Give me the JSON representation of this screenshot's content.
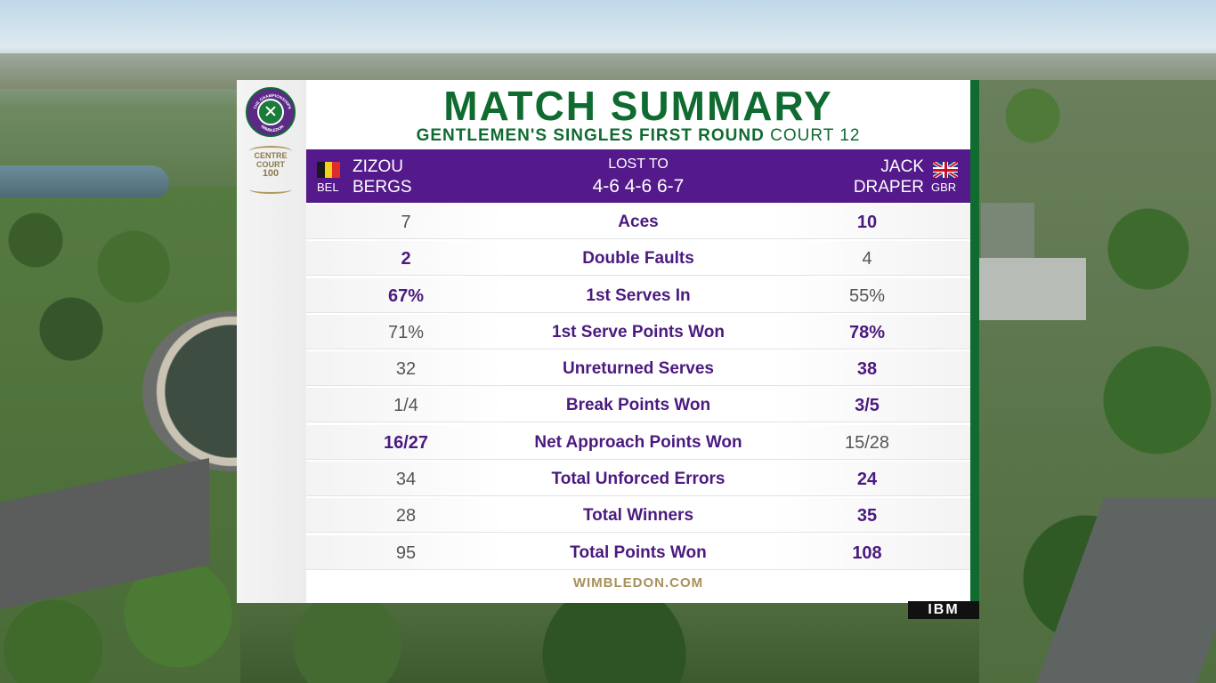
{
  "title": "MATCH SUMMARY",
  "subtitle": {
    "round": "GENTLEMEN'S SINGLES FIRST ROUND",
    "court": "COURT 12"
  },
  "logo": {
    "ring_text_top": "THE CHAMPIONSHIPS",
    "ring_text_bottom": "WIMBLEDON",
    "centre_court_line1": "CENTRE",
    "centre_court_line2": "COURT",
    "centre_court_number": "100"
  },
  "player1": {
    "first": "ZIZOU",
    "last": "BERGS",
    "country": "BEL",
    "flag_colors": [
      "#1a1a1a",
      "#f4d21c",
      "#e02b2b"
    ]
  },
  "player2": {
    "first": "JACK",
    "last": "DRAPER",
    "country": "GBR"
  },
  "result": {
    "status": "LOST TO",
    "score": "4-6 4-6 6-7"
  },
  "stats": [
    {
      "label": "Aces",
      "p1": "7",
      "p2": "10",
      "winner": "p2"
    },
    {
      "label": "Double Faults",
      "p1": "2",
      "p2": "4",
      "winner": "p1"
    },
    {
      "label": "1st Serves In",
      "p1": "67%",
      "p2": "55%",
      "winner": "p1"
    },
    {
      "label": "1st Serve Points Won",
      "p1": "71%",
      "p2": "78%",
      "winner": "p2"
    },
    {
      "label": "Unreturned Serves",
      "p1": "32",
      "p2": "38",
      "winner": "p2"
    },
    {
      "label": "Break Points Won",
      "p1": "1/4",
      "p2": "3/5",
      "winner": "p2"
    },
    {
      "label": "Net Approach Points Won",
      "p1": "16/27",
      "p2": "15/28",
      "winner": "p1"
    },
    {
      "label": "Total Unforced Errors",
      "p1": "34",
      "p2": "24",
      "winner": "p2"
    },
    {
      "label": "Total Winners",
      "p1": "28",
      "p2": "35",
      "winner": "p2"
    },
    {
      "label": "Total Points Won",
      "p1": "95",
      "p2": "108",
      "winner": "p2"
    }
  ],
  "footer": "WIMBLEDON.COM",
  "sponsor": "IBM",
  "colors": {
    "green": "#0f6b30",
    "purple": "#54198a",
    "gold": "#a8915a"
  }
}
